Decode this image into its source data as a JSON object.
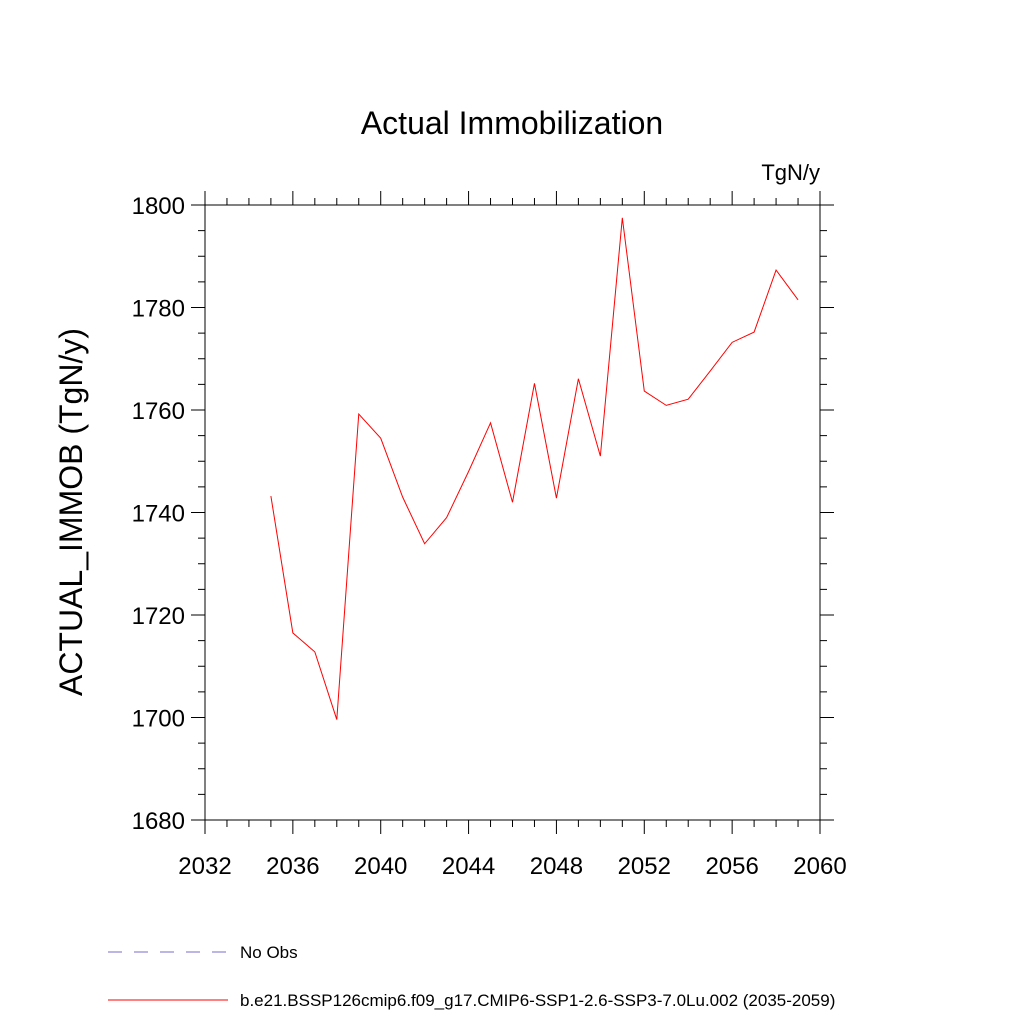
{
  "chart_data": {
    "type": "line",
    "title": "Actual Immobilization",
    "units": "TgN/y",
    "ylabel": "ACTUAL_IMMOB  (TgN/y)",
    "xlabel": "",
    "xlim": [
      2032,
      2060
    ],
    "ylim": [
      1680,
      1800
    ],
    "xticks": [
      2032,
      2036,
      2040,
      2044,
      2048,
      2052,
      2056,
      2060
    ],
    "yticks": [
      1680,
      1700,
      1720,
      1740,
      1760,
      1780,
      1800
    ],
    "series": [
      {
        "name": "b.e21.BSSP126cmip6.f09_g17.CMIP6-SSP1-2.6-SSP3-7.0Lu.002 (2035-2059)",
        "color": "#ff0000",
        "x": [
          2035,
          2036,
          2037,
          2038,
          2039,
          2040,
          2041,
          2042,
          2043,
          2044,
          2045,
          2046,
          2047,
          2048,
          2049,
          2050,
          2051,
          2052,
          2053,
          2054,
          2055,
          2056,
          2057,
          2058,
          2059
        ],
        "values": [
          1743.2,
          1716.5,
          1712.8,
          1699.6,
          1759.2,
          1754.5,
          1743.0,
          1733.9,
          1739.0,
          1748.0,
          1757.5,
          1742.0,
          1765.2,
          1742.8,
          1766.1,
          1751.0,
          1797.5,
          1763.7,
          1760.9,
          1762.1,
          1767.6,
          1773.2,
          1775.2,
          1787.3,
          1781.5
        ]
      }
    ],
    "legend": [
      {
        "label": "No Obs",
        "color": "#7a6ccf",
        "style": "dashed"
      },
      {
        "label": "b.e21.BSSP126cmip6.f09_g17.CMIP6-SSP1-2.6-SSP3-7.0Lu.002 (2035-2059)",
        "color": "#ff0000",
        "style": "solid"
      }
    ],
    "grid": false,
    "legend_position": "bottom-left"
  }
}
